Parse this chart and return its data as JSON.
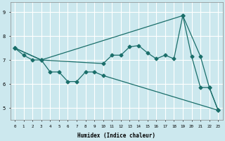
{
  "xlabel": "Humidex (Indice chaleur)",
  "bg_color": "#cce8ee",
  "grid_color": "#ffffff",
  "line_color": "#1a6e6a",
  "xlim": [
    -0.5,
    23.5
  ],
  "ylim": [
    4.5,
    9.4
  ],
  "xticks": [
    0,
    1,
    2,
    3,
    4,
    5,
    6,
    7,
    8,
    9,
    10,
    11,
    12,
    13,
    14,
    15,
    16,
    17,
    18,
    19,
    20,
    21,
    22,
    23
  ],
  "yticks": [
    5,
    6,
    7,
    8,
    9
  ],
  "line1_x": [
    0,
    3,
    19,
    21,
    22,
    23
  ],
  "line1_y": [
    7.5,
    7.0,
    8.85,
    7.15,
    5.85,
    4.9
  ],
  "line2_x": [
    0,
    1,
    2,
    3,
    10,
    11,
    12,
    13,
    14,
    15,
    16,
    17,
    18,
    19,
    20,
    21,
    22,
    23
  ],
  "line2_y": [
    7.5,
    7.2,
    7.0,
    7.0,
    6.85,
    7.2,
    7.2,
    7.55,
    7.6,
    7.3,
    7.05,
    7.2,
    7.05,
    8.85,
    7.15,
    5.85,
    5.85,
    4.9
  ],
  "line3_x": [
    0,
    3,
    4,
    5,
    6,
    7,
    8,
    9,
    10,
    23
  ],
  "line3_y": [
    7.5,
    7.0,
    6.5,
    6.5,
    6.1,
    6.1,
    6.5,
    6.5,
    6.35,
    4.9
  ]
}
